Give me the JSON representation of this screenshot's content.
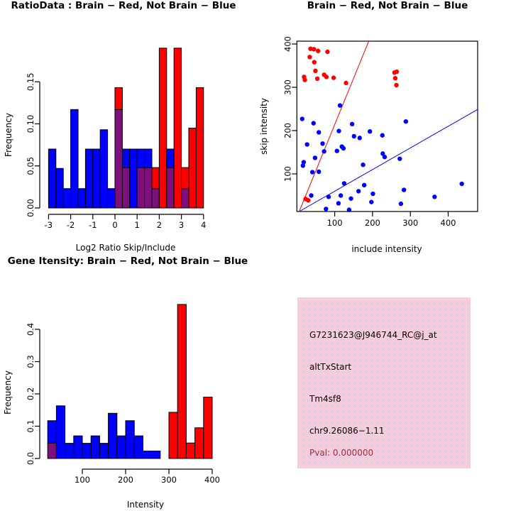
{
  "figure": {
    "background": "#ffffff"
  },
  "colors": {
    "brain_red": "#ff0000",
    "not_brain_blue": "#0000ff",
    "overlap_purple": "#7e107e",
    "axis_black": "#000000",
    "pval_red": "#a12c38",
    "info_box_pink": "#edc2d2"
  },
  "chart_data": [
    {
      "id": "ratio_histogram",
      "type": "bar",
      "title": "RatioData : Brain − Red, Not Brain − Blue",
      "xlabel": "Log2 Ratio Skip/Include",
      "ylabel": "Frequency",
      "bin_start": -3,
      "bin_width": 0.3333,
      "series": [
        {
          "name": "Not Brain (blue)",
          "color": "#0000ff",
          "values": [
            0.07,
            0.047,
            0.023,
            0.117,
            0.023,
            0.07,
            0.07,
            0.093,
            0.023,
            0.117,
            0.07,
            0.07,
            0.07,
            0.07,
            0.023,
            0,
            0.07,
            0,
            0.023,
            0,
            0
          ]
        },
        {
          "name": "Brain (red)",
          "color": "#ff0000",
          "values": [
            0,
            0,
            0,
            0,
            0,
            0,
            0,
            0,
            0,
            0.143,
            0.048,
            0,
            0.048,
            0.048,
            0.048,
            0.19,
            0.048,
            0.19,
            0.048,
            0.095,
            0.143
          ]
        }
      ],
      "overlap_rule": "purple where red and blue histograms overlap",
      "x_ticks": {
        "values": [
          -3,
          -2,
          -1,
          0,
          1,
          2,
          3,
          4
        ],
        "labels": [
          "-3",
          "-2",
          "-1",
          "0",
          "1",
          "2",
          "3",
          "4"
        ]
      },
      "y_ticks": {
        "values": [
          0,
          0.05,
          0.1,
          0.15
        ],
        "labels": [
          "0.00",
          "0.05",
          "0.10",
          "0.15"
        ]
      },
      "ylim": [
        0,
        0.19
      ],
      "grid": false
    },
    {
      "id": "intensity_scatter",
      "type": "scatter",
      "title": "Brain − Red, Not Brain − Blue",
      "xlabel": "include intensity",
      "ylabel": "skip intensity",
      "x_ticks": {
        "values": [
          100,
          200,
          300,
          400
        ],
        "labels": [
          "100",
          "200",
          "300",
          "400"
        ]
      },
      "y_ticks": {
        "values": [
          100,
          200,
          300,
          400
        ],
        "labels": [
          "100",
          "200",
          "300",
          "400"
        ]
      },
      "xlim": [
        0,
        478
      ],
      "ylim": [
        13,
        407
      ],
      "series": [
        {
          "name": "Brain (red)",
          "color": "#ff0000",
          "points": [
            [
              36,
              389
            ],
            [
              45,
              388
            ],
            [
              56,
              384
            ],
            [
              81,
              382
            ],
            [
              34,
              370
            ],
            [
              46,
              358
            ],
            [
              49,
              338
            ],
            [
              54,
              320
            ],
            [
              72,
              329
            ],
            [
              78,
              324
            ],
            [
              97,
              322
            ],
            [
              19,
              324
            ],
            [
              21,
              317
            ],
            [
              130,
              310
            ],
            [
              258,
              334
            ],
            [
              264,
              336
            ],
            [
              260,
              321
            ],
            [
              263,
              305
            ],
            [
              23,
              42
            ],
            [
              30,
              39
            ]
          ]
        },
        {
          "name": "Not Brain (blue)",
          "color": "#0000ff",
          "points": [
            [
              14,
              227
            ],
            [
              44,
              217
            ],
            [
              58,
              196
            ],
            [
              114,
              258
            ],
            [
              111,
              199
            ],
            [
              146,
              215
            ],
            [
              151,
              187
            ],
            [
              166,
              183
            ],
            [
              193,
              198
            ],
            [
              226,
              189
            ],
            [
              288,
              221
            ],
            [
              27,
              168
            ],
            [
              48,
              137
            ],
            [
              18,
              127
            ],
            [
              16,
              119
            ],
            [
              41,
              104
            ],
            [
              58,
              105
            ],
            [
              72,
              152
            ],
            [
              68,
              170
            ],
            [
              106,
              153
            ],
            [
              119,
              163
            ],
            [
              123,
              159
            ],
            [
              175,
              121
            ],
            [
              227,
              147
            ],
            [
              232,
              139
            ],
            [
              272,
              135
            ],
            [
              125,
              78
            ],
            [
              178,
              74
            ],
            [
              163,
              60
            ],
            [
              38,
              50
            ],
            [
              84,
              47
            ],
            [
              116,
              50
            ],
            [
              143,
              43
            ],
            [
              110,
              32
            ],
            [
              201,
              54
            ],
            [
              197,
              35
            ],
            [
              283,
              63
            ],
            [
              275,
              31
            ],
            [
              364,
              47
            ],
            [
              436,
              77
            ],
            [
              77,
              19
            ],
            [
              138,
              17
            ]
          ]
        }
      ],
      "lines": [
        {
          "name": "red reference line",
          "color": "#ff0000",
          "intercept": 0,
          "slope": 2.14
        },
        {
          "name": "blue reference line",
          "color": "#0000ff",
          "intercept": 10,
          "slope": 0.5
        }
      ],
      "grid": false
    },
    {
      "id": "gene_intensity_histogram",
      "type": "bar",
      "title": "Gene Itensity: Brain − Red, Not Brain − Blue",
      "xlabel": "Intensity",
      "ylabel": "Frequency",
      "bin_start": 20,
      "bin_width": 20,
      "series": [
        {
          "name": "Not Brain (blue)",
          "color": "#0000ff",
          "values": [
            0.117,
            0.163,
            0.047,
            0.07,
            0.047,
            0.07,
            0.047,
            0.14,
            0.07,
            0.117,
            0.07,
            0.023,
            0.023,
            0,
            0,
            0,
            0,
            0,
            0
          ]
        },
        {
          "name": "Brain (red)",
          "color": "#ff0000",
          "values": [
            0.048,
            0,
            0,
            0,
            0,
            0,
            0,
            0,
            0,
            0,
            0,
            0,
            0,
            0,
            0.143,
            0.477,
            0.048,
            0.095,
            0.19
          ]
        }
      ],
      "overlap_rule": "purple where red and blue histograms overlap",
      "x_ticks": {
        "values": [
          100,
          200,
          300,
          400
        ],
        "labels": [
          "100",
          "200",
          "300",
          "400"
        ]
      },
      "y_ticks": {
        "values": [
          0,
          0.1,
          0.2,
          0.3,
          0.4
        ],
        "labels": [
          "0.0",
          "0.1",
          "0.2",
          "0.3",
          "0.4"
        ]
      },
      "ylim": [
        0,
        0.477
      ],
      "grid": false
    }
  ],
  "info_box": {
    "probe_id": "G7231623@J946744_RC@j_at",
    "event_type": "altTxStart",
    "gene": "Tm4sf8",
    "location": "chr9.26086−1.11",
    "pval_label": "Pval: 0.000000"
  }
}
